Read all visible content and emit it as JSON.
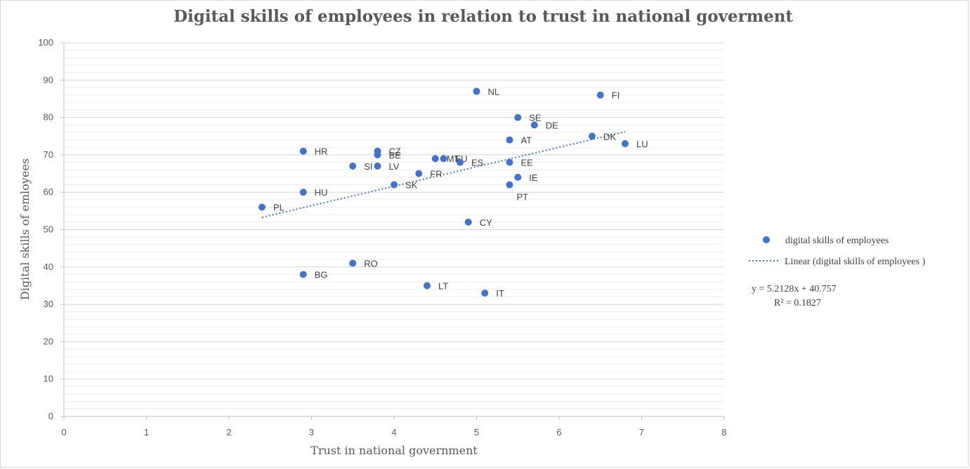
{
  "chart_data": {
    "type": "scatter",
    "title": "Digital skills of employees in relation to trust in national goverment",
    "xlabel": "Trust in national government",
    "ylabel": "Digital skills of emloyees",
    "xlim": [
      0,
      8
    ],
    "ylim": [
      0,
      100
    ],
    "xticks": [
      0,
      1,
      2,
      3,
      4,
      5,
      6,
      7,
      8
    ],
    "yticks": [
      0,
      10,
      20,
      30,
      40,
      50,
      60,
      70,
      80,
      90,
      100
    ],
    "grid": true,
    "minor_grid": true,
    "legend_position": "right",
    "marker_color": "#4472C4",
    "series": [
      {
        "name": "digital skills of employees",
        "points": [
          {
            "label": "PL",
            "x": 2.4,
            "y": 56
          },
          {
            "label": "HR",
            "x": 2.9,
            "y": 71
          },
          {
            "label": "HU",
            "x": 2.9,
            "y": 60
          },
          {
            "label": "BG",
            "x": 2.9,
            "y": 38
          },
          {
            "label": "SI",
            "x": 3.5,
            "y": 67
          },
          {
            "label": "RO",
            "x": 3.5,
            "y": 41
          },
          {
            "label": "CZ",
            "x": 3.8,
            "y": 71
          },
          {
            "label": "BE",
            "x": 3.8,
            "y": 70
          },
          {
            "label": "LV",
            "x": 3.8,
            "y": 67
          },
          {
            "label": "SK",
            "x": 4.0,
            "y": 62
          },
          {
            "label": "FR",
            "x": 4.3,
            "y": 65
          },
          {
            "label": "LT",
            "x": 4.4,
            "y": 35
          },
          {
            "label": "MT",
            "x": 4.5,
            "y": 69
          },
          {
            "label": "EU",
            "x": 4.6,
            "y": 69
          },
          {
            "label": "ES",
            "x": 4.8,
            "y": 68
          },
          {
            "label": "CY",
            "x": 4.9,
            "y": 52
          },
          {
            "label": "NL",
            "x": 5.0,
            "y": 87
          },
          {
            "label": "IT",
            "x": 5.1,
            "y": 33
          },
          {
            "label": "AT",
            "x": 5.4,
            "y": 74
          },
          {
            "label": "EE",
            "x": 5.4,
            "y": 68
          },
          {
            "label": "PT",
            "x": 5.4,
            "y": 62
          },
          {
            "label": "IE",
            "x": 5.5,
            "y": 64
          },
          {
            "label": "SE",
            "x": 5.5,
            "y": 80
          },
          {
            "label": "DE",
            "x": 5.7,
            "y": 78
          },
          {
            "label": "DK",
            "x": 6.4,
            "y": 75
          },
          {
            "label": "FI",
            "x": 6.5,
            "y": 86
          },
          {
            "label": "LU",
            "x": 6.8,
            "y": 73
          }
        ]
      }
    ],
    "trendline": {
      "name": "Linear (digital skills of employees )",
      "slope": 5.2128,
      "intercept": 40.757,
      "x_range": [
        2.4,
        6.8
      ],
      "equation": "y = 5.2128x + 40.757",
      "r_squared": "R² = 0.1827",
      "color": "#4472C4"
    }
  }
}
